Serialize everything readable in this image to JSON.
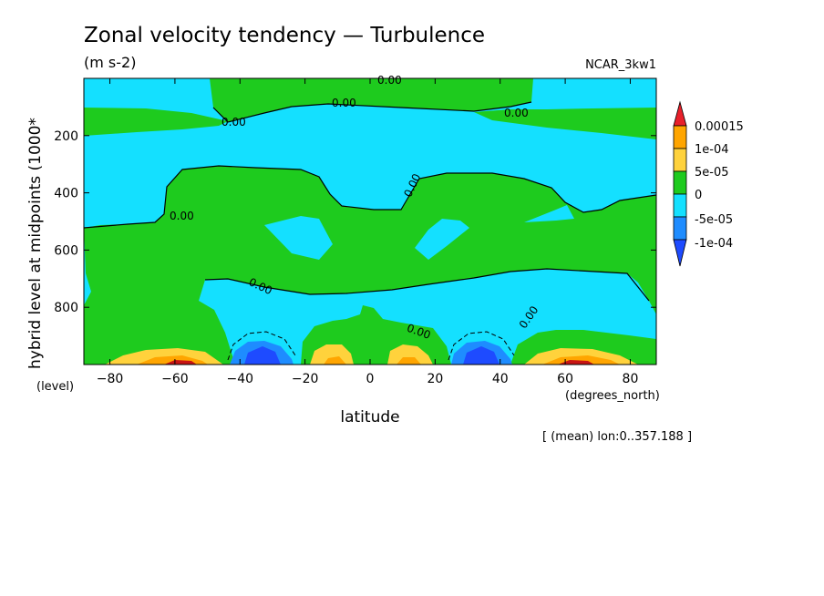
{
  "chart_data": {
    "type": "contour",
    "title": "Zonal velocity tendency — Turbulence",
    "units": "(m s-2)",
    "dataset": "NCAR_3kw1",
    "xlabel": "latitude",
    "xunits": "(degrees_north)",
    "ylabel": "hybrid level at midpoints (1000*",
    "yunits": "(level)",
    "note": "[ (mean) lon:0..357.188 ]",
    "xlim": [
      -88,
      88
    ],
    "ylim": [
      1000,
      0
    ],
    "xticks": [
      -80,
      -60,
      -40,
      -20,
      0,
      20,
      40,
      60,
      80
    ],
    "yticks": [
      200,
      400,
      600,
      800
    ],
    "contour_label": "0.00",
    "levels": [
      "0.00015",
      "1e-04",
      "5e-05",
      "0",
      "-5e-05",
      "-1e-04"
    ],
    "colors": {
      "above_max": "#e8202a",
      "l_1e-4_1.5e-4": "#ffa500",
      "l_5e-5_1e-4": "#ffd23c",
      "l_0_5e-5": "#1ecb1e",
      "l_-5e-5_0": "#14e0ff",
      "l_-1e-4_-5e-5": "#1e8cff",
      "below_min": "#1e4bff",
      "dark_red": "#c81414"
    },
    "features": [
      {
        "kind": "max",
        "lat": -60,
        "level": 990,
        "value": "> 0.00015"
      },
      {
        "kind": "max",
        "lat": 60,
        "level": 990,
        "value": "> 0.00015"
      },
      {
        "kind": "min",
        "lat": -35,
        "level": 975,
        "value": "< -1e-04"
      },
      {
        "kind": "min",
        "lat": 35,
        "level": 975,
        "value": "< -1e-04"
      },
      {
        "kind": "max",
        "lat": -12,
        "level": 985,
        "value": "1e-04"
      },
      {
        "kind": "max",
        "lat": 12,
        "level": 985,
        "value": "1e-04"
      }
    ]
  }
}
